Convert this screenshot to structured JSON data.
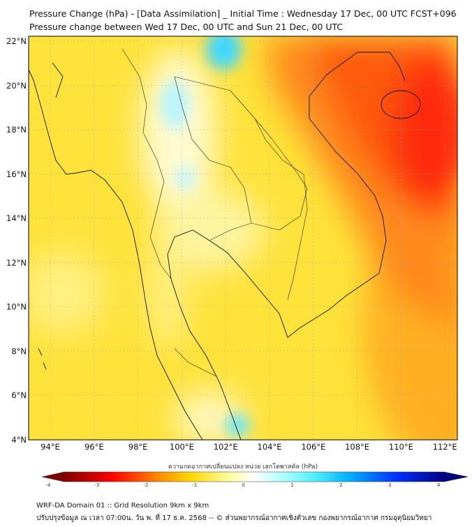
{
  "title": {
    "line1": "Pressure Change (hPa) - [Data Assimilation] _ Initial Time : Wednesday 17 Dec, 00 UTC FCST+096",
    "line2": "Pressure change between Wed 17 Dec, 00 UTC and Sun 21 Dec, 00 UTC"
  },
  "map": {
    "lat_labels": [
      "22°N",
      "20°N",
      "18°N",
      "16°N",
      "14°N",
      "12°N",
      "10°N",
      "8°N",
      "6°N",
      "4°N"
    ],
    "lon_labels": [
      "94°E",
      "96°E",
      "98°E",
      "100°E",
      "102°E",
      "104°E",
      "106°E",
      "108°E",
      "110°E",
      "112°E"
    ]
  },
  "colorbar": {
    "title": "ความกดอากาศเปลี่ยนแปลง หน่วย เฮกโตพาสคัล (hPa)",
    "ticks": [
      "-4",
      "-3",
      "-2",
      "-1",
      "0",
      "1",
      "2",
      "3",
      "4"
    ],
    "colors": [
      "#800000",
      "#ff0000",
      "#ff8c00",
      "#ffd700",
      "#ffffff",
      "#4ff0ff",
      "#00b0ff",
      "#0030ff",
      "#000080"
    ]
  },
  "footer": {
    "line1": "WRF-DA Domain 01 :: Grid Resolution 9km x 9km",
    "line2": "ปรับปรุงข้อมูล ณ เวลา 07:00น. วัน พ. ที่ 17 ธ.ค. 2568 -- © ส่วนพยากรณ์อากาศเชิงตัวเลข กองพยากรณ์อากาศ กรมอุตุนิยมวิทยา"
  }
}
